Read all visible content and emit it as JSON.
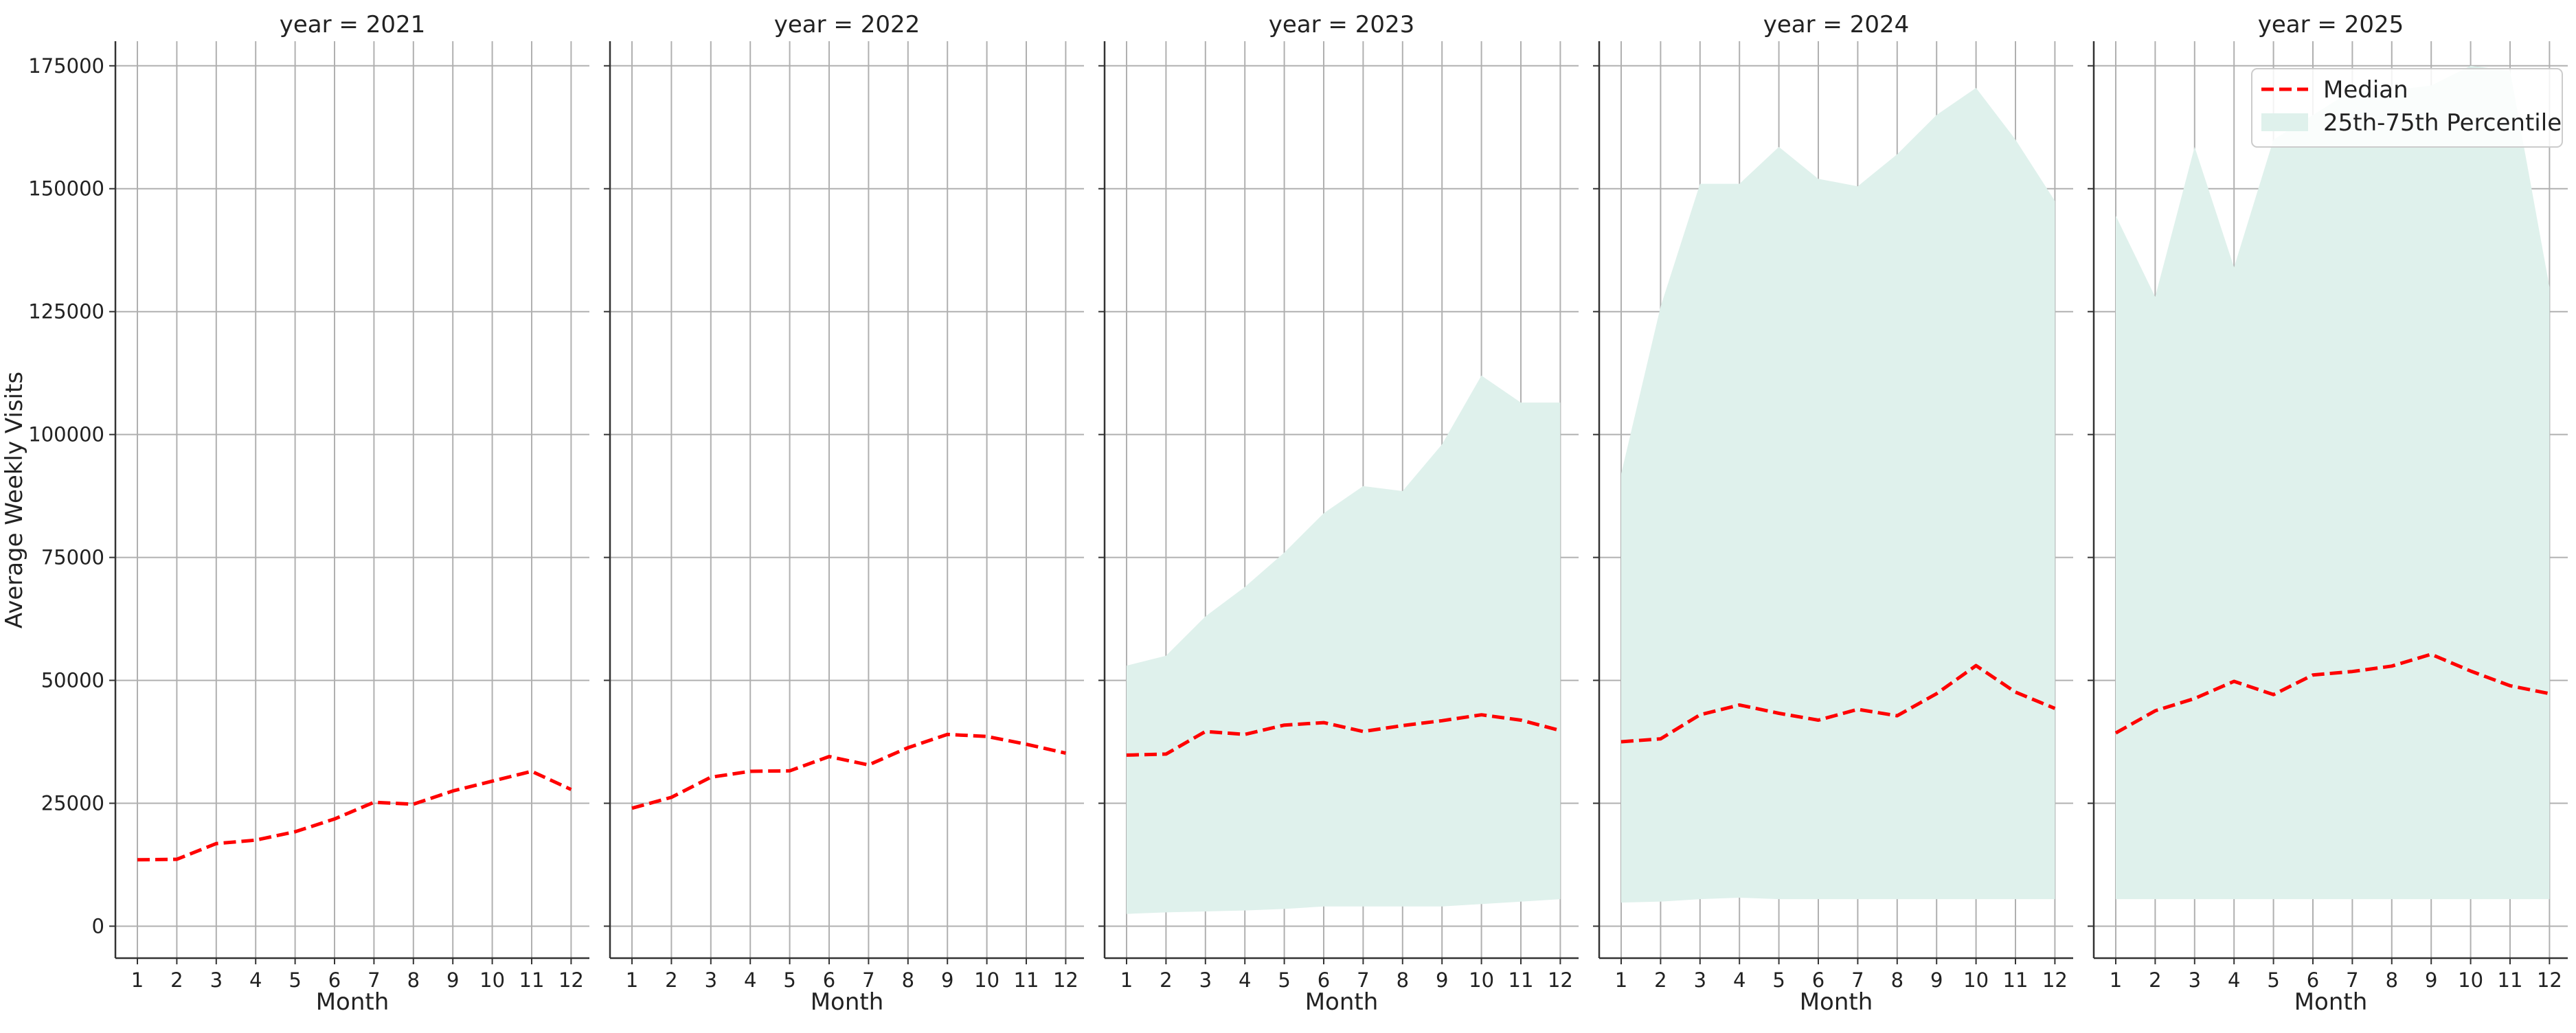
{
  "chart_data": {
    "type": "line",
    "ylabel": "Average Weekly Visits",
    "xlabel": "Month",
    "x": [
      1,
      2,
      3,
      4,
      5,
      6,
      7,
      8,
      9,
      10,
      11,
      12
    ],
    "xticks": [
      "1",
      "2",
      "3",
      "4",
      "5",
      "6",
      "7",
      "8",
      "9",
      "10",
      "11",
      "12"
    ],
    "ylim": [
      -6500,
      180000
    ],
    "yticks": [
      "0",
      "25000",
      "50000",
      "75000",
      "100000",
      "125000",
      "150000",
      "175000"
    ],
    "ytick_values": [
      0,
      25000,
      50000,
      75000,
      100000,
      125000,
      150000,
      175000
    ],
    "grid": true,
    "legend": {
      "placement": "top-right",
      "entries": [
        "Median",
        "25th-75th Percentile"
      ]
    },
    "colors": {
      "median": "#ff0000",
      "band": "#dff1ec",
      "grid": "#b0b0b0",
      "axis": "#333333"
    },
    "facets": [
      {
        "title": "year = 2021",
        "median": [
          13500,
          13600,
          16800,
          17500,
          19200,
          21800,
          25200,
          24800,
          27500,
          29500,
          31500,
          27800
        ],
        "p25": null,
        "p75": null
      },
      {
        "title": "year = 2022",
        "median": [
          24000,
          26200,
          30300,
          31500,
          31600,
          34500,
          32800,
          36300,
          39000,
          38600,
          37000,
          35200
        ],
        "p25": null,
        "p75": null
      },
      {
        "title": "year = 2023",
        "median": [
          34800,
          35000,
          39600,
          39000,
          40900,
          41400,
          39600,
          40800,
          41800,
          43000,
          41900,
          39800
        ],
        "p25": [
          2500,
          2800,
          3000,
          3200,
          3500,
          4000,
          4000,
          4000,
          4000,
          4500,
          5000,
          5500
        ],
        "p75": [
          53000,
          55000,
          63000,
          69000,
          76000,
          84000,
          89500,
          88500,
          98000,
          112000,
          106500,
          106500
        ]
      },
      {
        "title": "year = 2024",
        "median": [
          37500,
          38100,
          43000,
          45000,
          43300,
          41900,
          44100,
          42800,
          47300,
          53000,
          47600,
          44300
        ],
        "p25": [
          4800,
          5000,
          5500,
          5800,
          5500,
          5500,
          5500,
          5500,
          5500,
          5500,
          5500,
          5500
        ],
        "p75": [
          92000,
          126000,
          151000,
          151000,
          158500,
          152000,
          150500,
          157000,
          165000,
          170500,
          160000,
          147500
        ]
      },
      {
        "title": "year = 2025",
        "median": [
          39300,
          43800,
          46300,
          49800,
          47100,
          51100,
          51800,
          52900,
          55300,
          51900,
          48900,
          47300
        ],
        "p25": [
          5500,
          5500,
          5500,
          5500,
          5500,
          5500,
          5500,
          5500,
          5500,
          5500,
          5500,
          5500
        ],
        "p75": [
          144500,
          128000,
          158500,
          134000,
          160000,
          165000,
          170000,
          170000,
          171000,
          175000,
          174000,
          130000
        ]
      }
    ]
  }
}
